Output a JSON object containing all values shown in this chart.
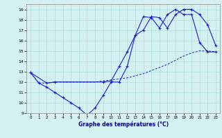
{
  "title": "Graphe des températures (°C)",
  "background_color": "#d4f0f0",
  "grid_color": "#aadddd",
  "line_color": "#1a1acc",
  "ylim": [
    9,
    19.5
  ],
  "xlim": [
    -0.5,
    23.5
  ],
  "yticks": [
    9,
    10,
    11,
    12,
    13,
    14,
    15,
    16,
    17,
    18,
    19
  ],
  "xticks": [
    0,
    1,
    2,
    3,
    4,
    5,
    6,
    7,
    8,
    9,
    10,
    11,
    12,
    13,
    14,
    15,
    16,
    17,
    18,
    19,
    20,
    21,
    22,
    23
  ],
  "series1_x": [
    0,
    1,
    2,
    3,
    4,
    5,
    6,
    7,
    8,
    9,
    10,
    11,
    12,
    13,
    14,
    15,
    16,
    17,
    18,
    19,
    20,
    21,
    22,
    23
  ],
  "series1_y": [
    12.9,
    11.9,
    11.5,
    11.0,
    10.5,
    10.0,
    9.5,
    8.8,
    9.5,
    10.7,
    12.0,
    12.0,
    13.5,
    16.5,
    17.0,
    18.3,
    18.2,
    17.2,
    18.5,
    19.0,
    19.0,
    18.5,
    17.5,
    15.5
  ],
  "series2_x": [
    0,
    1,
    2,
    3,
    4,
    5,
    6,
    7,
    8,
    9,
    10,
    11,
    12,
    13,
    14,
    15,
    16,
    17,
    18,
    19,
    20,
    21,
    22,
    23
  ],
  "series2_y": [
    12.9,
    11.9,
    11.9,
    12.0,
    12.0,
    12.0,
    12.0,
    12.0,
    12.0,
    12.1,
    12.2,
    12.3,
    12.4,
    12.6,
    12.8,
    13.1,
    13.4,
    13.7,
    14.1,
    14.5,
    14.8,
    15.0,
    15.0,
    14.9
  ],
  "series3_x": [
    0,
    2,
    3,
    9,
    10,
    11,
    12,
    13,
    14,
    15,
    16,
    17,
    18,
    19,
    20,
    21,
    22,
    23
  ],
  "series3_y": [
    12.9,
    11.9,
    12.0,
    12.0,
    12.1,
    13.5,
    14.9,
    16.5,
    18.3,
    18.2,
    17.2,
    18.5,
    19.0,
    18.5,
    18.5,
    15.8,
    14.9,
    14.9
  ]
}
